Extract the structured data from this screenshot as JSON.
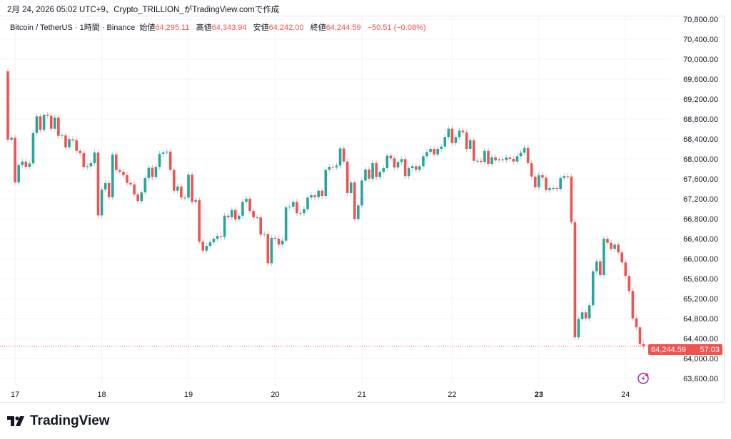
{
  "caption": "2月 24, 2026 05:02 UTC+9、Crypto_TRILLION_がTradingView.comで作成",
  "legend": {
    "symbol": "Bitcoin / TetherUS · 1時間 · Binance",
    "open_label": "始値",
    "open": "64,295.11",
    "high_label": "高値",
    "high": "64,343.94",
    "low_label": "安値",
    "low": "64,242.00",
    "close_label": "終値",
    "close": "64,244.59",
    "change": "−50.51 (−0.08%)"
  },
  "last_price": {
    "value": "64,244.59",
    "countdown": "57:03"
  },
  "logo_text": "TradingView",
  "icons": {
    "alert": "lightning-bolt-icon",
    "logo": "tradingview-logo-icon"
  },
  "colors": {
    "up": "#26a69a",
    "down": "#ef5350",
    "alert": "#9c27b0"
  },
  "chart_data": {
    "type": "candlestick",
    "title": "Bitcoin / TetherUS · 1時間 · Binance",
    "interval": "1h",
    "ylim": [
      63600,
      70800
    ],
    "y_ticks": [
      63600,
      64000,
      64400,
      64800,
      65200,
      65600,
      66000,
      66400,
      66800,
      67200,
      67600,
      68000,
      68400,
      68800,
      69200,
      69600,
      70000,
      70400,
      70800
    ],
    "x_ticks": [
      {
        "label": "17",
        "index": 2,
        "bold": false
      },
      {
        "label": "18",
        "index": 26,
        "bold": false
      },
      {
        "label": "19",
        "index": 50,
        "bold": false
      },
      {
        "label": "20",
        "index": 74,
        "bold": false
      },
      {
        "label": "21",
        "index": 98,
        "bold": false
      },
      {
        "label": "22",
        "index": 123,
        "bold": false
      },
      {
        "label": "23",
        "index": 147,
        "bold": true
      },
      {
        "label": "24",
        "index": 171,
        "bold": false
      }
    ],
    "grid": true,
    "first_open": 69757,
    "close": [
      68386,
      68425,
      67529,
      67876,
      67947,
      67843,
      67910,
      68519,
      68853,
      68582,
      68886,
      68862,
      68605,
      68829,
      68462,
      68472,
      68233,
      68396,
      68376,
      68162,
      68115,
      67839,
      67853,
      67915,
      68129,
      66867,
      67386,
      67515,
      67233,
      68090,
      67776,
      67743,
      67676,
      67519,
      67490,
      67290,
      67153,
      67329,
      67615,
      67825,
      67639,
      67843,
      68100,
      68129,
      68147,
      67782,
      67362,
      67447,
      67225,
      67225,
      67686,
      67139,
      67176,
      66343,
      66162,
      66257,
      66329,
      66400,
      66457,
      66439,
      66862,
      66829,
      66976,
      66790,
      66862,
      67139,
      67200,
      66957,
      66829,
      66829,
      66482,
      66496,
      65910,
      66415,
      66400,
      66282,
      66362,
      67029,
      67043,
      67139,
      66910,
      66910,
      66996,
      67225,
      67272,
      67233,
      67362,
      67257,
      67782,
      67843,
      67829,
      67867,
      68210,
      67947,
      67315,
      67529,
      66796,
      67067,
      67567,
      67790,
      67605,
      67915,
      67639,
      67743,
      67815,
      68067,
      68010,
      67829,
      67939,
      67996,
      67653,
      67815,
      67853,
      67782,
      67853,
      68053,
      68139,
      68200,
      68090,
      68200,
      68247,
      68439,
      68605,
      68319,
      68439,
      68567,
      68533,
      68200,
      68376,
      67962,
      67962,
      67939,
      68162,
      67900,
      68033,
      67972,
      67990,
      67972,
      68029,
      68000,
      67947,
      68053,
      68125,
      68219,
      67915,
      67647,
      67433,
      67676,
      67625,
      67376,
      67415,
      67415,
      67400,
      67615,
      67653,
      67647,
      66733,
      64425,
      64790,
      64925,
      64805,
      65067,
      65747,
      65947,
      65672,
      66400,
      66319,
      66196,
      66282,
      66125,
      65925,
      65653,
      65353,
      64805,
      64625,
      64290,
      64244.59
    ],
    "last_value": 64244.59
  }
}
